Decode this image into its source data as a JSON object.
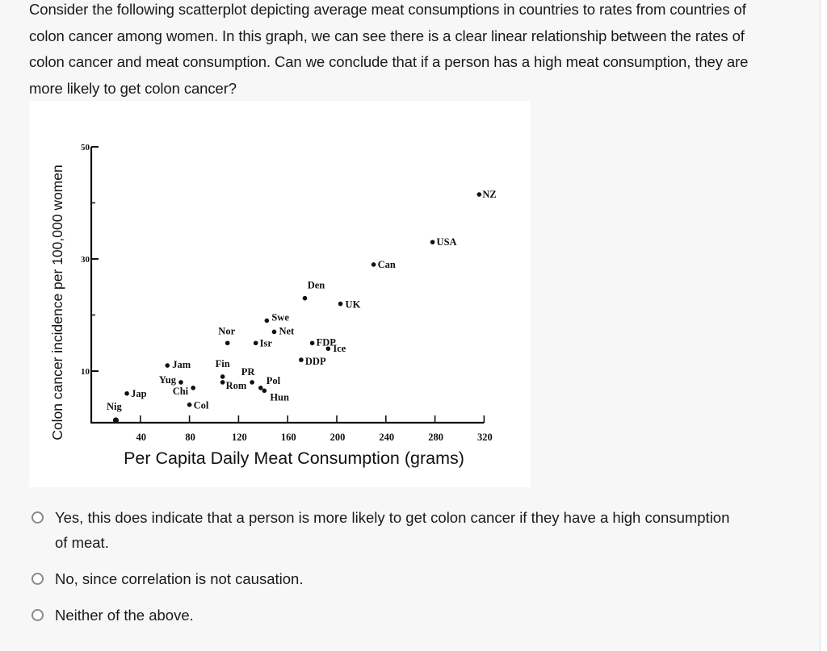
{
  "question": {
    "text": "Consider the following scatterplot depicting average meat consumptions in countries to rates from countries of colon cancer among women. In this graph, we can see there is a clear linear relationship between the rates of colon cancer and meat consumption. Can we conclude that if a person has a high meat consumption, they are more likely to get colon cancer?"
  },
  "options": [
    {
      "label": "Yes, this does indicate that a person is more likely to get colon cancer if they have a high consumption of meat.",
      "selected": false
    },
    {
      "label": "No, since correlation is not causation.",
      "selected": false
    },
    {
      "label": "Neither of the above.",
      "selected": false
    }
  ],
  "chart_data": {
    "type": "scatter",
    "title": "",
    "xlabel": "Per Capita Daily Meat Consumption (grams)",
    "ylabel": "Colon cancer incidence per 100,000 women",
    "xlim": [
      0,
      320
    ],
    "ylim": [
      0,
      50
    ],
    "xticks": [
      40,
      80,
      120,
      160,
      200,
      240,
      280,
      320
    ],
    "yticks_labeled": [
      10,
      30,
      50
    ],
    "yticks_minor": [
      20,
      40
    ],
    "grid": false,
    "legend": null,
    "points": [
      {
        "label": "Nig",
        "x": 20,
        "y": 1
      },
      {
        "label": "Jap",
        "x": 29,
        "y": 6
      },
      {
        "label": "Jam",
        "x": 62,
        "y": 11
      },
      {
        "label": "Yug",
        "x": 73,
        "y": 8
      },
      {
        "label": "Chi",
        "x": 83,
        "y": 7
      },
      {
        "label": "Col",
        "x": 80,
        "y": 4
      },
      {
        "label": "Fin",
        "x": 107,
        "y": 9
      },
      {
        "label": "Rom",
        "x": 107,
        "y": 8
      },
      {
        "label": "PR",
        "x": 131,
        "y": 8
      },
      {
        "label": "Pol",
        "x": 138,
        "y": 7
      },
      {
        "label": "Hun",
        "x": 141,
        "y": 6.5
      },
      {
        "label": "Nor",
        "x": 111,
        "y": 15
      },
      {
        "label": "Isr",
        "x": 134,
        "y": 15
      },
      {
        "label": "Swe",
        "x": 143,
        "y": 19
      },
      {
        "label": "Net",
        "x": 149,
        "y": 17
      },
      {
        "label": "Den",
        "x": 174,
        "y": 23
      },
      {
        "label": "UK",
        "x": 203,
        "y": 22
      },
      {
        "label": "FDP",
        "x": 180,
        "y": 15
      },
      {
        "label": "Ice",
        "x": 193,
        "y": 14
      },
      {
        "label": "DDP",
        "x": 171,
        "y": 12
      },
      {
        "label": "Can",
        "x": 230,
        "y": 29
      },
      {
        "label": "USA",
        "x": 278,
        "y": 33
      },
      {
        "label": "NZ",
        "x": 316,
        "y": 41.5
      }
    ]
  }
}
